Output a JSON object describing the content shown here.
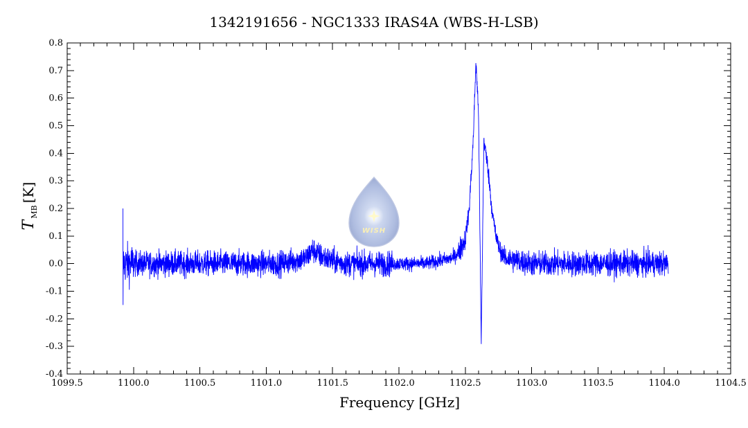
{
  "chart_data": {
    "type": "line",
    "title": "1342191656 - NGC1333 IRAS4A (WBS-H-LSB)",
    "xlabel": "Frequency [GHz]",
    "ylabel_main": "T",
    "ylabel_sub": "MB",
    "ylabel_unit": "[K]",
    "xlim": [
      1099.5,
      1104.5
    ],
    "ylim": [
      -0.4,
      0.8
    ],
    "x_major_ticks": [
      1099.5,
      1100.0,
      1100.5,
      1101.0,
      1101.5,
      1102.0,
      1102.5,
      1103.0,
      1103.5,
      1104.0,
      1104.5
    ],
    "x_tick_labels": [
      "1099.5",
      "1100.0",
      "1100.5",
      "1101.0",
      "1101.5",
      "1102.0",
      "1102.5",
      "1103.0",
      "1103.5",
      "1104.0",
      "1104.5"
    ],
    "y_major_ticks": [
      -0.4,
      -0.3,
      -0.2,
      -0.1,
      0.0,
      0.1,
      0.2,
      0.3,
      0.4,
      0.5,
      0.6,
      0.7,
      0.8
    ],
    "y_tick_labels": [
      "-0.4",
      "-0.3",
      "-0.2",
      "-0.1",
      "0.0",
      "0.1",
      "0.2",
      "0.3",
      "0.4",
      "0.5",
      "0.6",
      "0.7",
      "0.8"
    ],
    "grid": false,
    "series_color": "#0000ff",
    "series": [
      {
        "x": [
          1099.92,
          1100.0,
          1100.1,
          1100.2,
          1100.3,
          1100.4,
          1100.5,
          1100.6,
          1100.7,
          1100.8,
          1100.9,
          1101.0,
          1101.1,
          1101.2,
          1101.3,
          1101.35,
          1101.4,
          1101.5,
          1101.6,
          1101.7,
          1101.8,
          1101.9,
          1102.0,
          1102.1,
          1102.2,
          1102.3,
          1102.4,
          1102.45,
          1102.5,
          1102.53,
          1102.56,
          1102.58,
          1102.6,
          1102.62,
          1102.64,
          1102.67,
          1102.7,
          1102.73,
          1102.76,
          1102.8,
          1102.9,
          1103.0,
          1103.1,
          1103.2,
          1103.3,
          1103.4,
          1103.5,
          1103.6,
          1103.7,
          1103.8,
          1103.9,
          1104.0,
          1104.03
        ],
        "y": [
          0.0,
          0.0,
          0.0,
          0.0,
          0.0,
          0.0,
          0.0,
          0.0,
          0.0,
          0.0,
          0.0,
          0.0,
          0.0,
          0.01,
          0.02,
          0.05,
          0.03,
          0.01,
          0.0,
          0.0,
          0.0,
          0.0,
          0.0,
          0.0,
          0.0,
          0.01,
          0.02,
          0.04,
          0.09,
          0.2,
          0.45,
          0.73,
          0.55,
          -0.3,
          0.45,
          0.35,
          0.2,
          0.1,
          0.05,
          0.02,
          0.01,
          0.0,
          0.0,
          0.0,
          0.0,
          0.0,
          0.0,
          0.0,
          0.0,
          0.0,
          0.0,
          0.0,
          0.0
        ]
      }
    ],
    "noise_amplitude": 0.045,
    "watermark_label": "WISH"
  }
}
